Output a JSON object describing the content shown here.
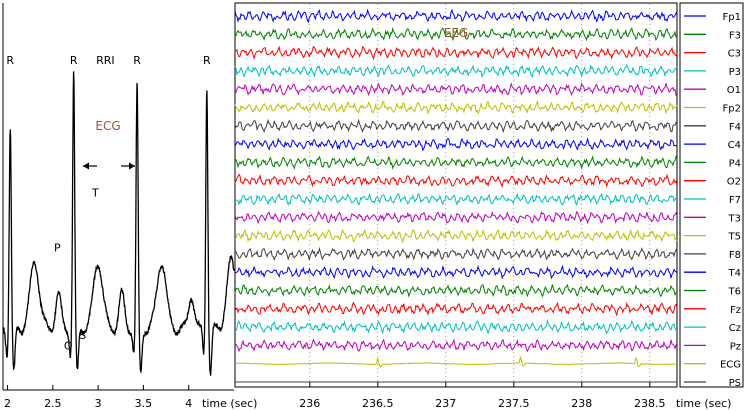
{
  "chart_data": [
    {
      "type": "line",
      "title": "ECG",
      "xlabel": "time (sec)",
      "xlim": [
        1.95,
        4.5
      ],
      "ylim": [
        -0.3,
        1.6
      ],
      "x_ticks": [
        "2",
        "2.5",
        "3",
        "3.5",
        "4"
      ],
      "x_tick_values": [
        2,
        2.5,
        3,
        3.5,
        4
      ],
      "color": "#000000",
      "beats": [
        {
          "r_peak": 2.03,
          "amplitude": 1.0
        },
        {
          "r_peak": 2.73,
          "amplitude": 1.25
        },
        {
          "r_peak": 3.43,
          "amplitude": 1.2
        },
        {
          "r_peak": 4.2,
          "amplitude": 1.2
        }
      ],
      "annotations": [
        {
          "text": "R",
          "x": 2.03,
          "y": 1.3
        },
        {
          "text": "R",
          "x": 2.73,
          "y": 1.3
        },
        {
          "text": "R",
          "x": 3.43,
          "y": 1.3
        },
        {
          "text": "R",
          "x": 4.2,
          "y": 1.3
        },
        {
          "text": "RRI",
          "x": 3.08,
          "y": 1.3
        },
        {
          "text": "P",
          "x": 2.55,
          "y": 0.38
        },
        {
          "text": "Q",
          "x": 2.67,
          "y": -0.1
        },
        {
          "text": "S",
          "x": 2.83,
          "y": -0.05
        },
        {
          "text": "T",
          "x": 2.97,
          "y": 0.65
        }
      ]
    },
    {
      "type": "line",
      "title": "EEG",
      "xlabel": "time (sec)",
      "xlim": [
        235.45,
        238.7
      ],
      "x_ticks": [
        "236",
        "236.5",
        "237",
        "237.5",
        "238",
        "238.5"
      ],
      "x_tick_values": [
        236,
        236.5,
        237,
        237.5,
        238,
        238.5
      ],
      "grid": "dotted vertical",
      "legend_position": "right",
      "series": [
        {
          "name": "Fp1",
          "color": "#0000ff"
        },
        {
          "name": "F3",
          "color": "#008000"
        },
        {
          "name": "C3",
          "color": "#ff0000"
        },
        {
          "name": "P3",
          "color": "#00bfbf"
        },
        {
          "name": "O1",
          "color": "#bf00bf"
        },
        {
          "name": "Fp2",
          "color": "#bfbf00"
        },
        {
          "name": "F4",
          "color": "#404040"
        },
        {
          "name": "C4",
          "color": "#0000ff"
        },
        {
          "name": "P4",
          "color": "#008000"
        },
        {
          "name": "O2",
          "color": "#ff0000"
        },
        {
          "name": "F7",
          "color": "#00bfbf"
        },
        {
          "name": "T3",
          "color": "#bf00bf"
        },
        {
          "name": "T5",
          "color": "#bfbf00"
        },
        {
          "name": "F8",
          "color": "#404040"
        },
        {
          "name": "T4",
          "color": "#0000ff"
        },
        {
          "name": "T6",
          "color": "#008000"
        },
        {
          "name": "Fz",
          "color": "#ff0000"
        },
        {
          "name": "Cz",
          "color": "#00bfbf"
        },
        {
          "name": "Pz",
          "color": "#bf00bf"
        },
        {
          "name": "ECG",
          "color": "#bfbf00"
        },
        {
          "name": "PS",
          "color": "#404040"
        }
      ]
    }
  ],
  "colors": {
    "ecg_title": "#a0522d",
    "eeg_title": "#a0522d",
    "axis": "#000000"
  }
}
